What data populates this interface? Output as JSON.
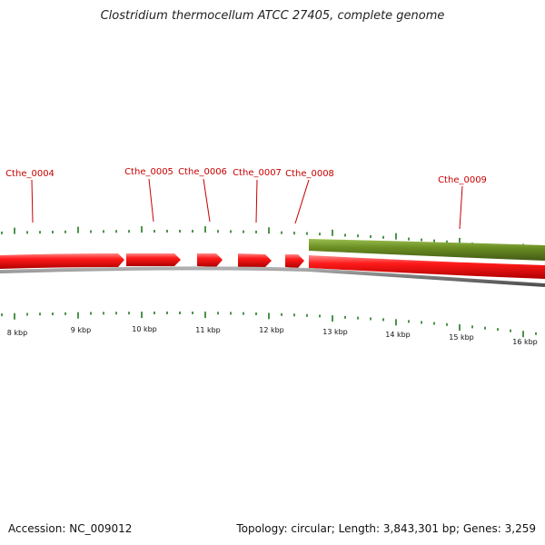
{
  "title": "Clostridium thermocellum ATCC 27405, complete genome",
  "footer": {
    "accession": "Accession: NC_009012",
    "summary": "Topology: circular; Length: 3,843,301 bp; Genes: 3,259"
  },
  "colors": {
    "forward_gene": "#ff0000",
    "reverse_gene": "#6b8e23",
    "label": "#c80000",
    "tick": "#1e7a1e",
    "backbone": "#808080"
  },
  "genes": [
    {
      "label": "Cthe_0004"
    },
    {
      "label": "Cthe_0005"
    },
    {
      "label": "Cthe_0006"
    },
    {
      "label": "Cthe_0007"
    },
    {
      "label": "Cthe_0008"
    },
    {
      "label": "Cthe_0009"
    }
  ],
  "kbp_labels": [
    "8 kbp",
    "9 kbp",
    "10 kbp",
    "11 kbp",
    "12 kbp",
    "13 kbp",
    "14 kbp",
    "15 kbp",
    "16 kbp"
  ]
}
